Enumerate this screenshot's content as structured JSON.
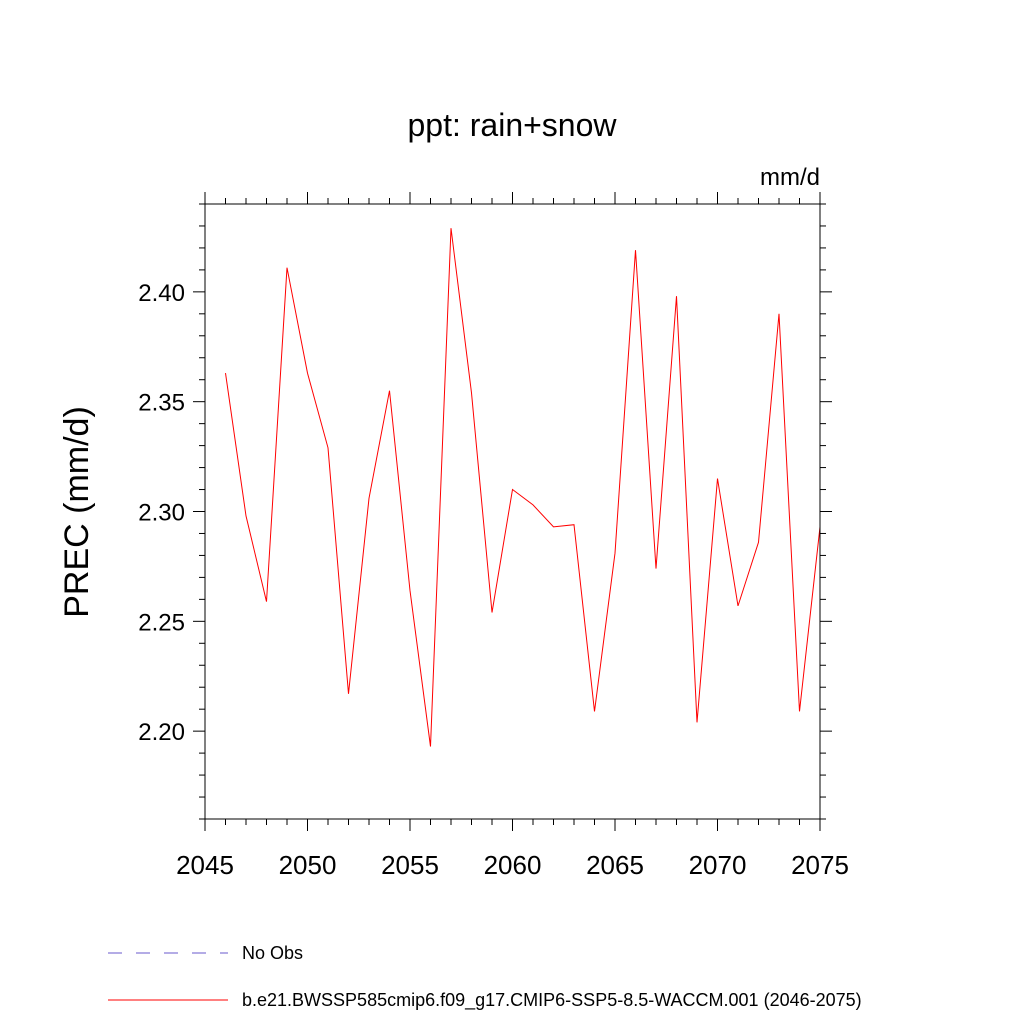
{
  "chart_data": {
    "type": "line",
    "title": "ppt: rain+snow",
    "units_label": "mm/d",
    "xlabel": "",
    "ylabel": "PREC  (mm/d)",
    "xlim": [
      2045,
      2075
    ],
    "ylim": [
      2.16,
      2.44
    ],
    "xticks": [
      2045,
      2050,
      2055,
      2060,
      2065,
      2070,
      2075
    ],
    "yticks": [
      "2.20",
      "2.25",
      "2.30",
      "2.35",
      "2.40"
    ],
    "series": [
      {
        "name": "b.e21.BWSSP585cmip6.f09_g17.CMIP6-SSP5-8.5-WACCM.001 (2046-2075)",
        "color": "#ff0000",
        "x": [
          2046,
          2047,
          2048,
          2049,
          2050,
          2051,
          2052,
          2053,
          2054,
          2055,
          2056,
          2057,
          2058,
          2059,
          2060,
          2061,
          2062,
          2063,
          2064,
          2065,
          2066,
          2067,
          2068,
          2069,
          2070,
          2071,
          2072,
          2073,
          2074,
          2075
        ],
        "values": [
          2.363,
          2.298,
          2.259,
          2.411,
          2.363,
          2.329,
          2.217,
          2.306,
          2.355,
          2.264,
          2.193,
          2.429,
          2.354,
          2.254,
          2.31,
          2.303,
          2.293,
          2.294,
          2.209,
          2.281,
          2.419,
          2.274,
          2.398,
          2.204,
          2.315,
          2.257,
          2.286,
          2.39,
          2.209,
          2.293
        ]
      }
    ],
    "legend": [
      {
        "label": "No Obs",
        "style": "dashed",
        "color": "#6a5acd"
      },
      {
        "label": "b.e21.BWSSP585cmip6.f09_g17.CMIP6-SSP5-8.5-WACCM.001 (2046-2075)",
        "style": "solid",
        "color": "#ff0000"
      }
    ]
  }
}
